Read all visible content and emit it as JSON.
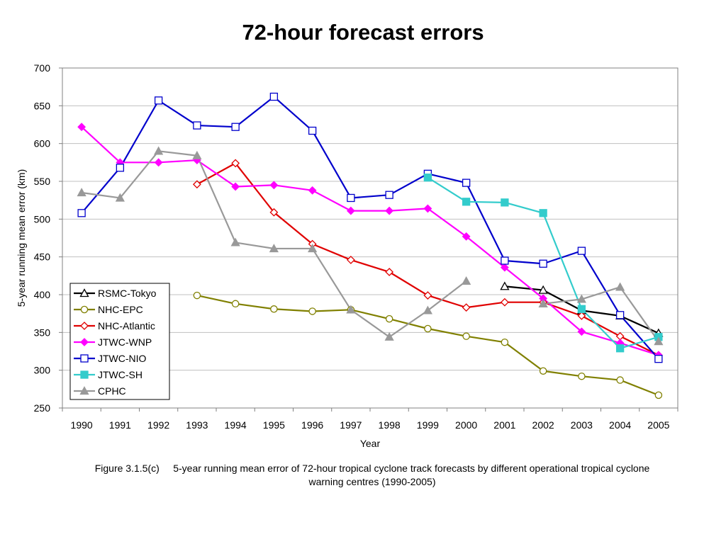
{
  "title": "72-hour forecast errors",
  "caption": {
    "figure_no": "Figure 3.1.5(c)",
    "text": "5-year running mean error of 72-hour tropical cyclone track forecasts by different operational tropical cyclone warning centres (1990-2005)"
  },
  "chart_data": {
    "type": "line",
    "xlabel": "Year",
    "ylabel": "5-year running mean error (km)",
    "x": [
      "1990",
      "1991",
      "1992",
      "1993",
      "1994",
      "1995",
      "1996",
      "1997",
      "1998",
      "1999",
      "2000",
      "2001",
      "2002",
      "2003",
      "2004",
      "2005"
    ],
    "ylim": [
      250,
      700
    ],
    "yticks": [
      250,
      300,
      350,
      400,
      450,
      500,
      550,
      600,
      650,
      700
    ],
    "grid": "horizontal",
    "legend_position": "bottom-left",
    "series": [
      {
        "name": "RSMC-Tokyo",
        "color": "#000000",
        "marker": "open-triangle",
        "values": [
          null,
          null,
          null,
          null,
          null,
          null,
          null,
          null,
          null,
          null,
          null,
          411,
          406,
          379,
          372,
          349
        ]
      },
      {
        "name": "NHC-EPC",
        "color": "#808000",
        "marker": "open-circle",
        "values": [
          null,
          null,
          null,
          399,
          388,
          381,
          378,
          380,
          368,
          355,
          345,
          337,
          299,
          292,
          287,
          267
        ]
      },
      {
        "name": "NHC-Atlantic",
        "color": "#e00000",
        "marker": "open-diamond",
        "values": [
          null,
          null,
          null,
          546,
          574,
          509,
          467,
          446,
          430,
          399,
          383,
          390,
          390,
          372,
          345,
          320
        ]
      },
      {
        "name": "JTWC-WNP",
        "color": "#ff00ff",
        "marker": "filled-diamond",
        "values": [
          622,
          575,
          575,
          578,
          543,
          545,
          538,
          511,
          511,
          514,
          477,
          436,
          395,
          351,
          336,
          320
        ]
      },
      {
        "name": "JTWC-NIO",
        "color": "#0000cc",
        "marker": "open-square",
        "values": [
          508,
          568,
          657,
          624,
          622,
          662,
          617,
          528,
          532,
          560,
          548,
          445,
          441,
          458,
          373,
          315
        ]
      },
      {
        "name": "JTWC-SH",
        "color": "#33cccc",
        "marker": "filled-square",
        "values": [
          null,
          null,
          null,
          null,
          null,
          null,
          null,
          null,
          null,
          555,
          523,
          522,
          508,
          381,
          329,
          344
        ]
      },
      {
        "name": "CPHC",
        "color": "#999999",
        "marker": "filled-triangle",
        "values": [
          535,
          528,
          590,
          584,
          469,
          461,
          461,
          380,
          344,
          379,
          418,
          null,
          388,
          394,
          410,
          338
        ]
      }
    ]
  }
}
